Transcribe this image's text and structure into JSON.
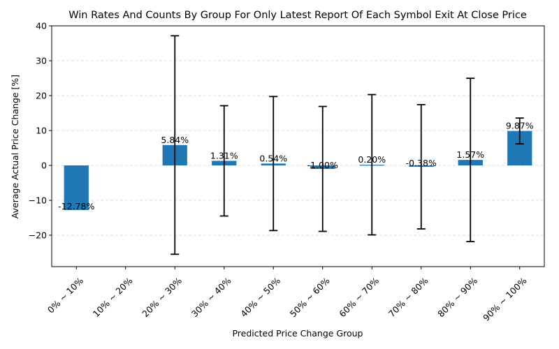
{
  "chart_data": {
    "type": "bar",
    "title": "Win Rates And Counts By Group For Only Latest Report Of Each Symbol Exit At Close Price",
    "xlabel": "Predicted Price Change Group",
    "ylabel": "Average Actual Price Change [%]",
    "ylim": [
      -29,
      40
    ],
    "yticks": [
      -20,
      -10,
      0,
      10,
      20,
      30,
      40
    ],
    "ytick_labels": [
      "−20",
      "−10",
      "0",
      "10",
      "20",
      "30",
      "40"
    ],
    "grid": true,
    "categories": [
      "0% ~ 10%",
      "10% ~ 20%",
      "20% ~ 30%",
      "30% ~ 40%",
      "40% ~ 50%",
      "50% ~ 60%",
      "60% ~ 70%",
      "70% ~ 80%",
      "80% ~ 90%",
      "90% ~ 100%"
    ],
    "values": [
      -12.78,
      null,
      5.84,
      1.31,
      0.54,
      -1.0,
      0.2,
      -0.38,
      1.57,
      9.87
    ],
    "value_labels": [
      "-12.78%",
      "",
      "5.84%",
      "1.31%",
      "0.54%",
      "-1.00%",
      "0.20%",
      "-0.38%",
      "1.57%",
      "9.87%"
    ],
    "error_bars": [
      null,
      null,
      31.3,
      15.8,
      19.2,
      17.9,
      20.1,
      17.8,
      23.4,
      3.7
    ],
    "colors": {
      "bar": "#1f77b4",
      "error": "#000000",
      "grid": "#d9d9d9"
    }
  }
}
